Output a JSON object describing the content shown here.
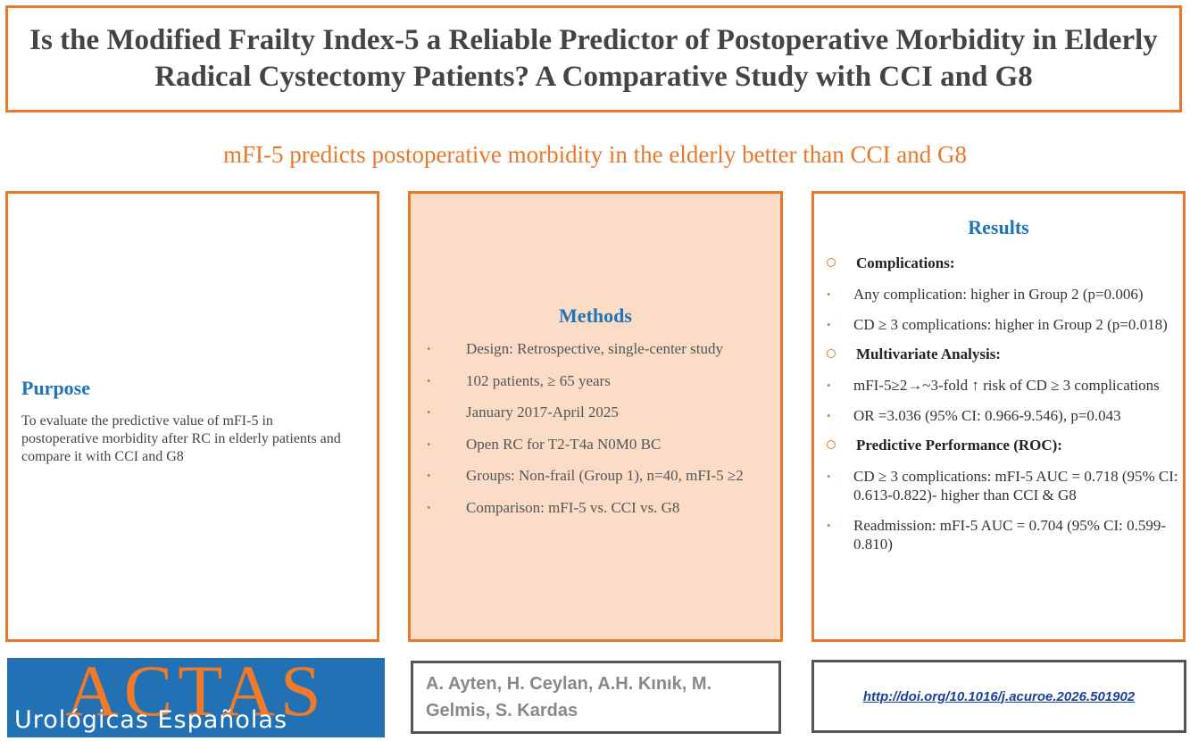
{
  "title": {
    "line1": "Is the Modified Frailty Index-5 a Reliable Predictor of Postoperative Morbidity in Elderly",
    "line2": "Radical Cystectomy Patients? A Comparative Study with CCI and G8"
  },
  "subtitle": "mFI-5 predicts postoperative morbidity in the elderly better than CCI and G8",
  "purpose": {
    "heading": "Purpose",
    "text": "To evaluate the predictive value of mFI-5 in postoperative morbidity after RC in elderly patients and compare it with CCI and G8"
  },
  "methods": {
    "heading": "Methods",
    "items": [
      "Design: Retrospective, single-center study",
      "102 patients, ≥ 65 years",
      "January 2017-April 2025",
      "Open RC for T2-T4a N0M0 BC",
      "Groups: Non-frail (Group 1), n=40, mFI-5 ≥2",
      "Comparison: mFI-5 vs. CCI vs. G8"
    ]
  },
  "results": {
    "heading": "Results",
    "sections": [
      {
        "title": "Complications:",
        "items": [
          "Any complication: higher in Group 2 (p=0.006)",
          "CD ≥ 3 complications: higher in Group 2 (p=0.018)"
        ]
      },
      {
        "title": "Multivariate Analysis:",
        "items": [
          "mFI-5≥2→~3-fold ↑ risk of CD ≥ 3 complications",
          "OR =3.036 (95% CI: 0.966-9.546), p=0.043"
        ]
      },
      {
        "title": "Predictive Performance (ROC):",
        "items": [
          "CD ≥ 3 complications: mFI-5 AUC = 0.718 (95% CI: 0.613-0.822)- higher than CCI & G8",
          "Readmission: mFI-5 AUC = 0.704 (95% CI: 0.599-0.810)"
        ]
      }
    ]
  },
  "logo": {
    "big": "ACTAS",
    "small": "Urológicas Españolas"
  },
  "authors": "A. Ayten, H. Ceylan, A.H. Kınık, M. Gelmis, S. Kardas",
  "doi": "http://doi.org/10.1016/j.acuroe.2026.501902",
  "colors": {
    "accent": "#e8782a",
    "heading_blue": "#1f73b7",
    "methods_bg": "#fbdcc7",
    "logo_bg": "#2271b5"
  }
}
